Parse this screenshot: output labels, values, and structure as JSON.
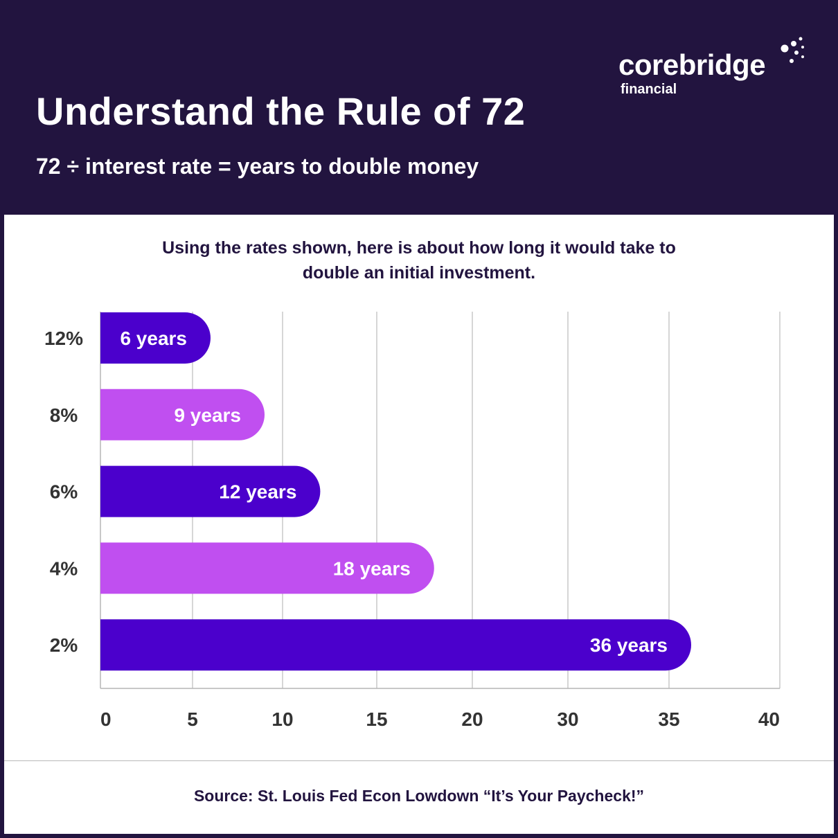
{
  "header": {
    "title": "Understand the Rule of 72",
    "subtitle": "72 ÷ interest rate = years to double money"
  },
  "logo": {
    "word": "corebridge",
    "sub": "financial",
    "icon": "dots-icon"
  },
  "colors": {
    "background": "#22143f",
    "card": "#ffffff",
    "bar_dark": "#4b00cc",
    "bar_light": "#c04ff0",
    "grid": "#c8c8c8"
  },
  "chart_data": {
    "type": "bar",
    "orientation": "horizontal",
    "title": "Using the rates shown, here is about how long it would take to double an initial investment.",
    "title_lines": [
      "Using the rates shown, here is about how long it would take to",
      "double an initial investment."
    ],
    "categories": [
      "12%",
      "8%",
      "6%",
      "4%",
      "2%"
    ],
    "values": [
      6,
      9,
      12,
      18,
      36
    ],
    "value_labels": [
      "6 years",
      "9 years",
      "12 years",
      "18 years",
      "36 years"
    ],
    "bar_colors": [
      "#4b00cc",
      "#c04ff0",
      "#4b00cc",
      "#c04ff0",
      "#4b00cc"
    ],
    "x_ticks": [
      "0",
      "5",
      "10",
      "15",
      "20",
      "30",
      "35",
      "40"
    ],
    "xlim": [
      0,
      40
    ],
    "grid": true,
    "legend": "none"
  },
  "footer": {
    "source": "Source: St. Louis Fed Econ Lowdown “It’s Your Paycheck!”"
  }
}
